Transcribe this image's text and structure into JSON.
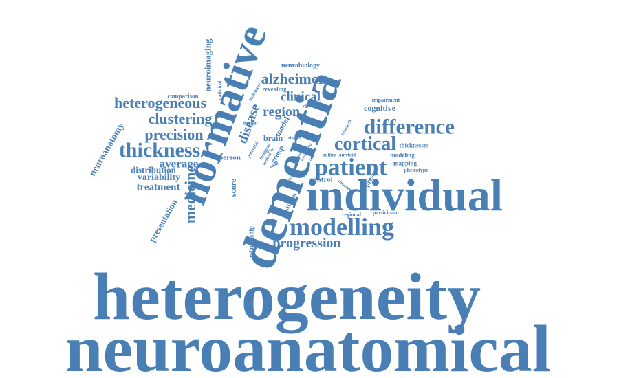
{
  "words": {
    "heterogeneity": "heterogeneity",
    "neuroanatomical": "neuroanatomical",
    "individual": "individual",
    "dementia": "dementia",
    "normative": "normative",
    "modelling": "modelling",
    "difference": "difference",
    "patient": "patient",
    "cortical": "cortical",
    "progression": "progression",
    "thickness": "thickness",
    "alzheimer": "alzheimer",
    "heterogeneous": "heterogeneous",
    "clustering": "clustering",
    "precision": "precision",
    "medicine": "medicine",
    "disease": "disease",
    "region": "region",
    "clinical": "clinical",
    "average": "average",
    "distribution": "distribution",
    "variability": "variability",
    "treatment": "treatment",
    "neuroanatomy": "neuroanatomy",
    "presentation": "presentation",
    "neuroimaging": "neuroimaging",
    "neurobiology": "neurobiology",
    "cognitive": "cognitive",
    "impairment": "impairment",
    "revealing": "revealing",
    "comparison": "comparison",
    "brain": "brain",
    "model": "model",
    "score": "score",
    "person": "person",
    "control": "control",
    "pattern": "pattern",
    "regional": "regional",
    "participant": "participant",
    "relationship": "relationship",
    "thicknesses": "thicknesses",
    "modeling": "modeling",
    "mapping": "mapping",
    "phenotype": "phenotype",
    "outlier": "outlier",
    "amyloid": "amyloid",
    "statistical": "statistical",
    "technique": "technique",
    "response": "response",
    "dataset": "dataset",
    "studies": "studies",
    "research": "research",
    "present": "present",
    "measure": "measure",
    "group": "group",
    "potential": "potential",
    "functional": "functional",
    "method": "method",
    "marker": "marker",
    "adult": "adult",
    "normal": "normal",
    "data": "data",
    "level": "level",
    "tissue": "tissue",
    "loss": "loss"
  },
  "color": "#4a7fb5"
}
